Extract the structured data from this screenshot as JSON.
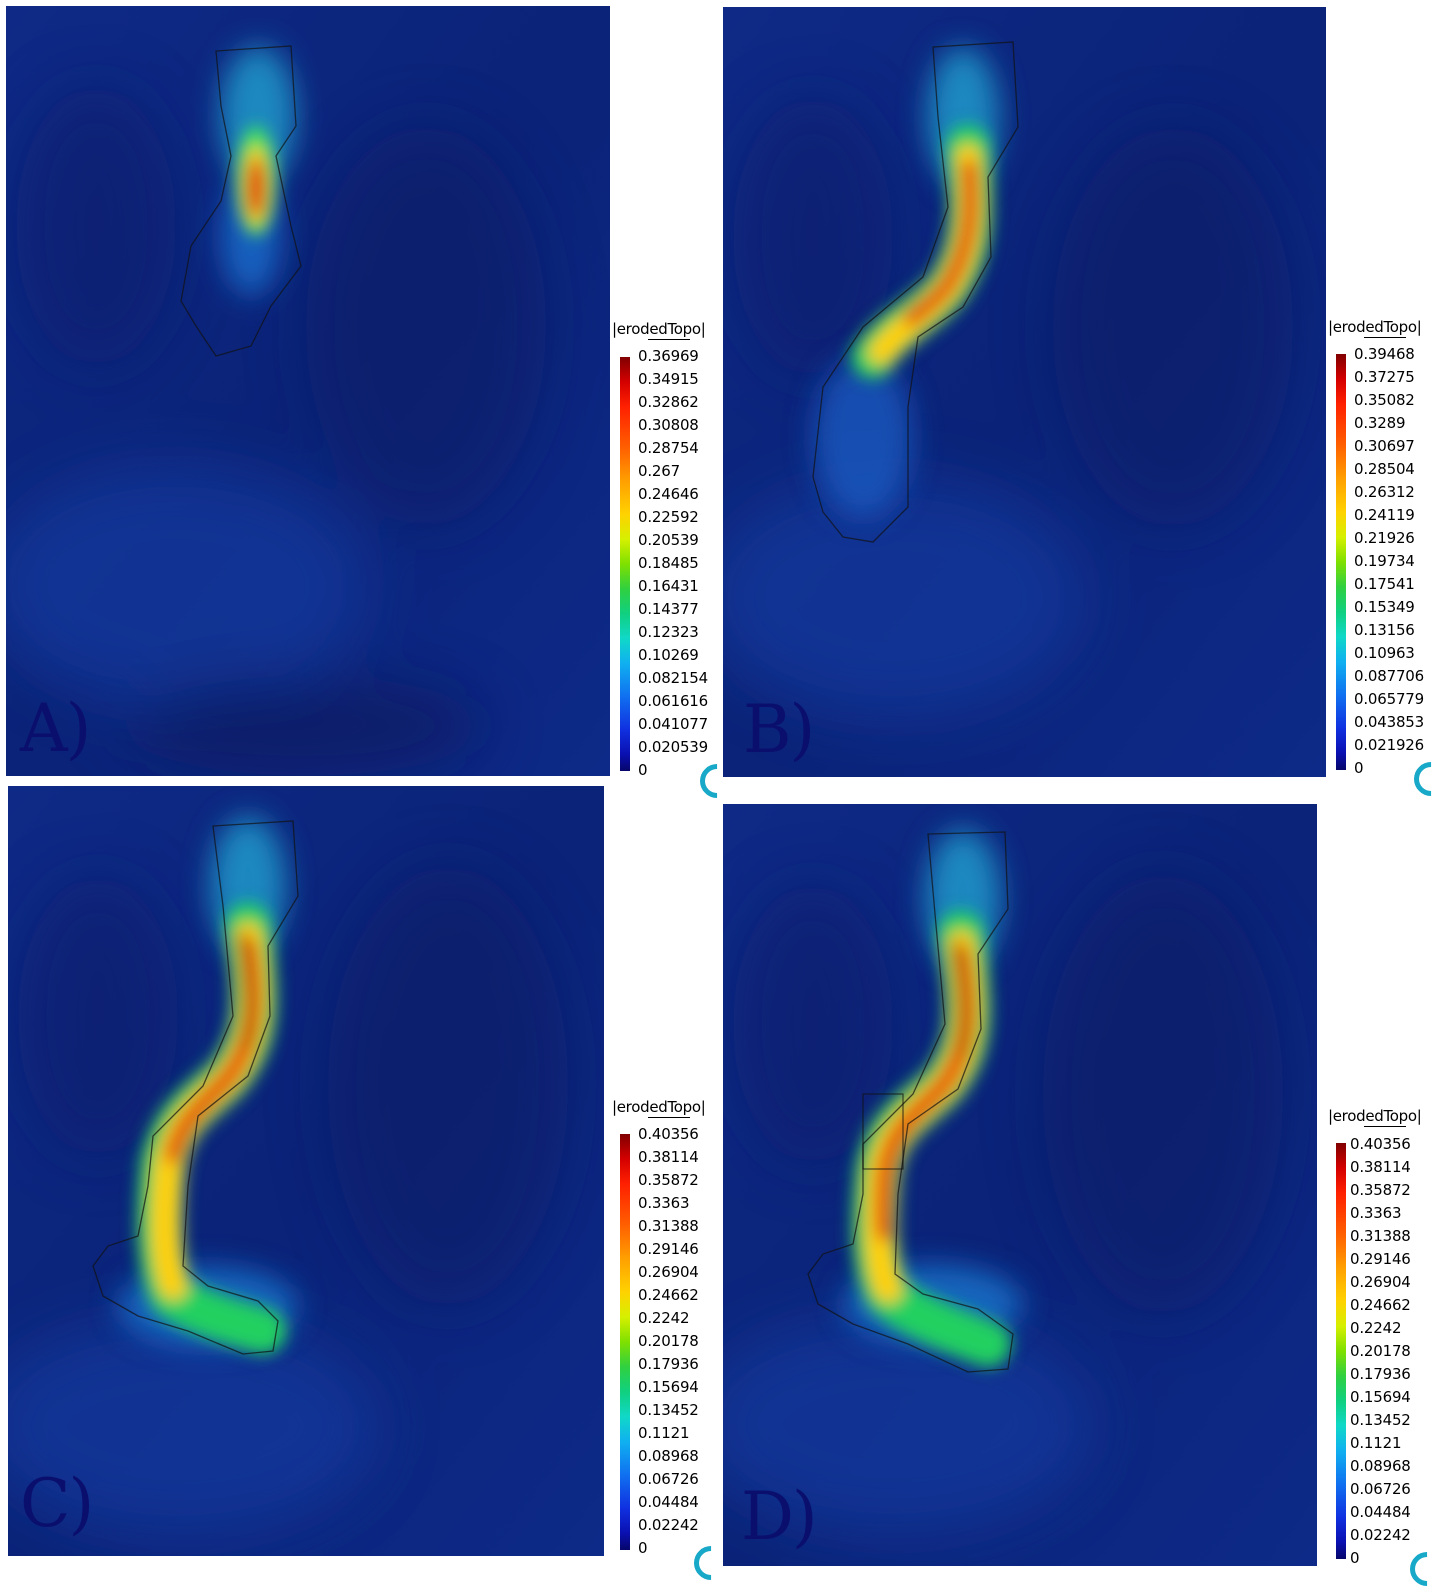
{
  "panels": [
    {
      "label": "A)",
      "legend_title": "|erodedTopo|",
      "legend_ticks": [
        "0.36969",
        "0.34915",
        "0.32862",
        "0.30808",
        "0.28754",
        "0.267",
        "0.24646",
        "0.22592",
        "0.20539",
        "0.18485",
        "0.16431",
        "0.14377",
        "0.12323",
        "0.10269",
        "0.082154",
        "0.061616",
        "0.041077",
        "0.020539",
        "0"
      ]
    },
    {
      "label": "B)",
      "legend_title": "|erodedTopo|",
      "legend_ticks": [
        "0.39468",
        "0.37275",
        "0.35082",
        "0.3289",
        "0.30697",
        "0.28504",
        "0.26312",
        "0.24119",
        "0.21926",
        "0.19734",
        "0.17541",
        "0.15349",
        "0.13156",
        "0.10963",
        "0.087706",
        "0.065779",
        "0.043853",
        "0.021926",
        "0"
      ]
    },
    {
      "label": "C)",
      "legend_title": "|erodedTopo|",
      "legend_ticks": [
        "0.40356",
        "0.38114",
        "0.35872",
        "0.3363",
        "0.31388",
        "0.29146",
        "0.26904",
        "0.24662",
        "0.2242",
        "0.20178",
        "0.17936",
        "0.15694",
        "0.13452",
        "0.1121",
        "0.08968",
        "0.06726",
        "0.04484",
        "0.02242",
        "0"
      ]
    },
    {
      "label": "D)",
      "legend_title": "|erodedTopo|",
      "legend_ticks": [
        "0.40356",
        "0.38114",
        "0.35872",
        "0.3363",
        "0.31388",
        "0.29146",
        "0.26904",
        "0.24662",
        "0.2242",
        "0.20178",
        "0.17936",
        "0.15694",
        "0.13452",
        "0.1121",
        "0.08968",
        "0.06726",
        "0.04484",
        "0.02242",
        "0"
      ]
    }
  ]
}
